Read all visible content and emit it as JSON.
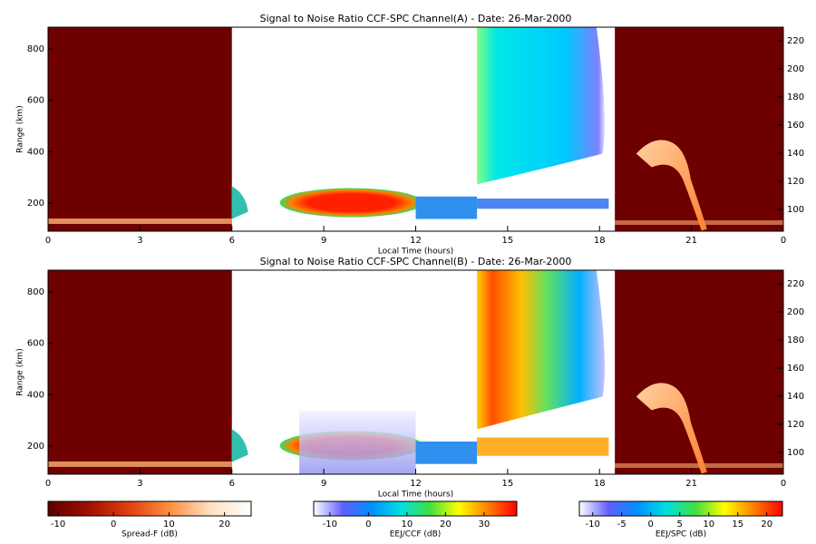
{
  "chart_data": [
    {
      "type": "heatmap",
      "title": "Signal to Noise Ratio CCF-SPC Channel(A) - Date: 26-Mar-2000",
      "xlabel": "Local Time (hours)",
      "ylabel": "Range (km)",
      "xlim": [
        0,
        24
      ],
      "xticks": [
        0,
        3,
        6,
        9,
        12,
        15,
        18,
        21,
        {
          "value": 24,
          "label": "0"
        }
      ],
      "ylim": [
        90,
        885
      ],
      "yticks": [
        200,
        400,
        600,
        800
      ],
      "y2lim": [
        84.5,
        229.7
      ],
      "y2ticks": [
        100,
        120,
        140,
        160,
        180,
        200,
        220
      ]
    },
    {
      "type": "heatmap",
      "title": "Signal to Noise Ratio CCF-SPC Channel(B) - Date: 26-Mar-2000",
      "xlabel": "Local Time (hours)",
      "ylabel": "Range (km)",
      "xlim": [
        0,
        24
      ],
      "xticks": [
        0,
        3,
        6,
        9,
        12,
        15,
        18,
        21,
        {
          "value": 24,
          "label": "0"
        }
      ],
      "ylim": [
        90,
        885
      ],
      "yticks": [
        200,
        400,
        600,
        800
      ],
      "y2lim": [
        84.5,
        229.7
      ],
      "y2ticks": [
        100,
        120,
        140,
        160,
        180,
        200,
        220
      ]
    },
    {
      "type": "colorbar",
      "xlabel": "Spread-F (dB)",
      "xlim": [
        -11.8,
        24.8
      ],
      "xticks": [
        -10,
        0,
        10,
        20
      ],
      "colors": [
        "#5a0000",
        "#a01000",
        "#e04010",
        "#ff9040",
        "#ffe0c0",
        "#ffffff"
      ]
    },
    {
      "type": "colorbar",
      "xlabel": "EEJ/CCF (dB)",
      "xlim": [
        -14.2,
        38.5
      ],
      "xticks": [
        -10,
        0,
        10,
        20,
        30
      ],
      "colors": [
        "#ffffff",
        "#6060ff",
        "#0090ff",
        "#00e0e0",
        "#40e040",
        "#ffff00",
        "#ff8000",
        "#ff0000"
      ]
    },
    {
      "type": "colorbar",
      "xlabel": "EEJ/SPC (dB)",
      "xlim": [
        -12.3,
        22.7
      ],
      "xticks": [
        -10,
        -5,
        0,
        5,
        10,
        15,
        20
      ],
      "colors": [
        "#ffffff",
        "#6060ff",
        "#0090ff",
        "#00e0e0",
        "#40e040",
        "#ffff00",
        "#ff8000",
        "#ff0000"
      ]
    }
  ]
}
